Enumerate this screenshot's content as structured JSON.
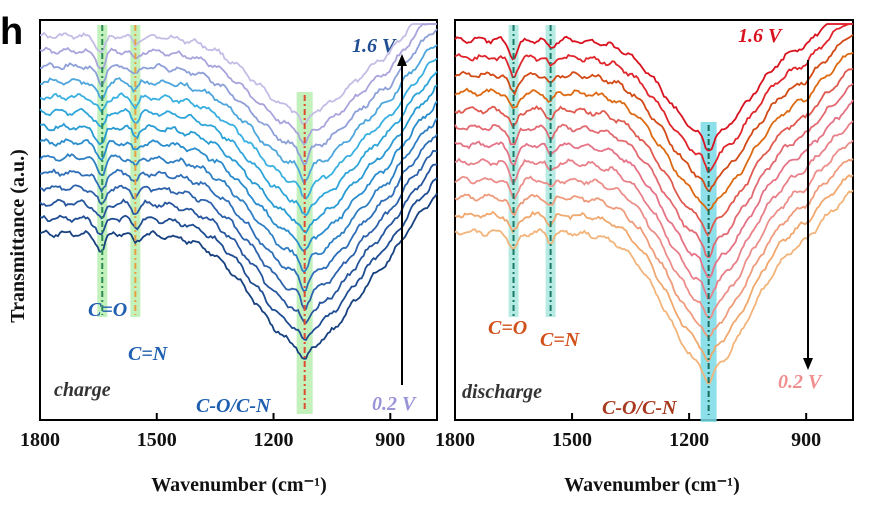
{
  "panel_label": "h",
  "y_axis_label": "Transmittance (a.u.)",
  "x_axis_label": "Wavenumber (cm⁻¹)",
  "chart_data": [
    {
      "type": "line",
      "name": "charge",
      "annotation": "charge",
      "xlim": [
        1800,
        780
      ],
      "x_reversed": true,
      "x_ticks": [
        1800,
        1500,
        1200,
        900
      ],
      "x_tick_labels": [
        "1800",
        "1500",
        "1200",
        "900"
      ],
      "y_ticks": [],
      "n_curves": 14,
      "voltage_top": "1.6 V",
      "voltage_bottom": "0.2 V",
      "arrow_direction": "up",
      "colors": [
        "#c3bde6",
        "#a9a4dc",
        "#8ea0d8",
        "#4fa6dc",
        "#3ab0e0",
        "#2fa6da",
        "#289cd2",
        "#2a8ccc",
        "#2f7fc3",
        "#2f6fb8",
        "#2d62ab",
        "#27569e",
        "#1f4d92",
        "#17417f"
      ],
      "bands": [
        {
          "label": "C=O",
          "position": 1640,
          "highlight": "#b7eeb0",
          "line_color": "#2e8b57"
        },
        {
          "label": "C=N",
          "position": 1555,
          "highlight": "#b7eeb0",
          "line_color": "#e8a040"
        },
        {
          "label": "C-O/C-N",
          "position": 1120,
          "highlight": "#b7eeb0",
          "line_color": "#e04a30"
        }
      ]
    },
    {
      "type": "line",
      "name": "discharge",
      "annotation": "discharge",
      "xlim": [
        1800,
        780
      ],
      "x_reversed": true,
      "x_ticks": [
        1800,
        1500,
        1200,
        900
      ],
      "x_tick_labels": [
        "1800",
        "1500",
        "1200",
        "900"
      ],
      "y_ticks": [],
      "n_curves": 12,
      "voltage_top": "1.6 V",
      "voltage_bottom": "0.2 V",
      "arrow_direction": "down",
      "colors": [
        "#d9121f",
        "#e0262c",
        "#d24a16",
        "#dd6a12",
        "#e05a50",
        "#e26a72",
        "#e57386",
        "#e8808a",
        "#ec8f8a",
        "#ef9c7c",
        "#f0a86e",
        "#f2b47a"
      ],
      "bands": [
        {
          "label": "C=O",
          "position": 1650,
          "highlight": "#a9e8de",
          "line_color": "#1a7a6a"
        },
        {
          "label": "C=N",
          "position": 1555,
          "highlight": "#a9e8de",
          "line_color": "#1a7a6a"
        },
        {
          "label": "C-O/C-N",
          "position": 1150,
          "highlight": "#79dbe6",
          "line_color": "#1a6a5a"
        }
      ]
    }
  ]
}
